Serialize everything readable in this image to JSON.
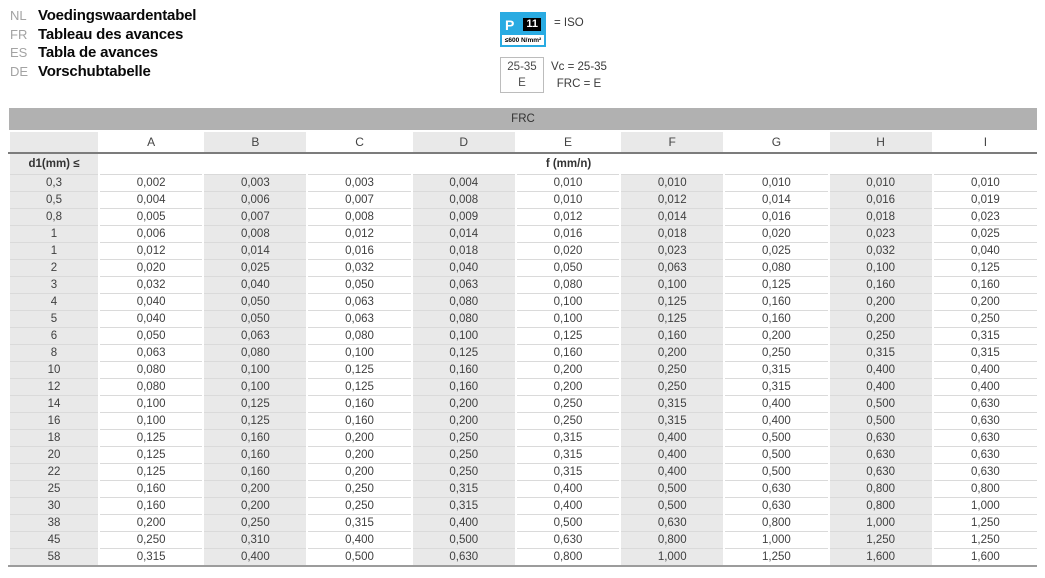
{
  "header": {
    "titles": [
      {
        "lang": "NL",
        "text": "Voedingswaardentabel"
      },
      {
        "lang": "FR",
        "text": "Tableau des avances"
      },
      {
        "lang": "ES",
        "text": "Tabla de avances"
      },
      {
        "lang": "DE",
        "text": "Vorschubtabelle"
      }
    ],
    "iso_badge": {
      "letter": "P",
      "number": "11",
      "subtext": "≤600 N/mm²",
      "equals_label": "= ISO",
      "accent_color": "#29abe2"
    },
    "vc_box": {
      "line1": "25-35",
      "line2": "E",
      "right_line1": "Vc = 25-35",
      "right_line2": "FRC = E"
    }
  },
  "table": {
    "group_header": "FRC",
    "columns": [
      "A",
      "B",
      "C",
      "D",
      "E",
      "F",
      "G",
      "H",
      "I"
    ],
    "row_label_header": "d1(mm) ≤",
    "value_header": "f (mm/n)",
    "rows": [
      {
        "d1": "0,3",
        "values": [
          "0,002",
          "0,003",
          "0,003",
          "0,004",
          "0,010",
          "0,010",
          "0,010",
          "0,010",
          "0,010"
        ]
      },
      {
        "d1": "0,5",
        "values": [
          "0,004",
          "0,006",
          "0,007",
          "0,008",
          "0,010",
          "0,012",
          "0,014",
          "0,016",
          "0,019"
        ]
      },
      {
        "d1": "0,8",
        "values": [
          "0,005",
          "0,007",
          "0,008",
          "0,009",
          "0,012",
          "0,014",
          "0,016",
          "0,018",
          "0,023"
        ]
      },
      {
        "d1": "1",
        "values": [
          "0,006",
          "0,008",
          "0,012",
          "0,014",
          "0,016",
          "0,018",
          "0,020",
          "0,023",
          "0,025"
        ]
      },
      {
        "d1": "1",
        "values": [
          "0,012",
          "0,014",
          "0,016",
          "0,018",
          "0,020",
          "0,023",
          "0,025",
          "0,032",
          "0,040"
        ]
      },
      {
        "d1": "2",
        "values": [
          "0,020",
          "0,025",
          "0,032",
          "0,040",
          "0,050",
          "0,063",
          "0,080",
          "0,100",
          "0,125"
        ]
      },
      {
        "d1": "3",
        "values": [
          "0,032",
          "0,040",
          "0,050",
          "0,063",
          "0,080",
          "0,100",
          "0,125",
          "0,160",
          "0,160"
        ]
      },
      {
        "d1": "4",
        "values": [
          "0,040",
          "0,050",
          "0,063",
          "0,080",
          "0,100",
          "0,125",
          "0,160",
          "0,200",
          "0,200"
        ]
      },
      {
        "d1": "5",
        "values": [
          "0,040",
          "0,050",
          "0,063",
          "0,080",
          "0,100",
          "0,125",
          "0,160",
          "0,200",
          "0,250"
        ]
      },
      {
        "d1": "6",
        "values": [
          "0,050",
          "0,063",
          "0,080",
          "0,100",
          "0,125",
          "0,160",
          "0,200",
          "0,250",
          "0,315"
        ]
      },
      {
        "d1": "8",
        "values": [
          "0,063",
          "0,080",
          "0,100",
          "0,125",
          "0,160",
          "0,200",
          "0,250",
          "0,315",
          "0,315"
        ]
      },
      {
        "d1": "10",
        "values": [
          "0,080",
          "0,100",
          "0,125",
          "0,160",
          "0,200",
          "0,250",
          "0,315",
          "0,400",
          "0,400"
        ]
      },
      {
        "d1": "12",
        "values": [
          "0,080",
          "0,100",
          "0,125",
          "0,160",
          "0,200",
          "0,250",
          "0,315",
          "0,400",
          "0,400"
        ]
      },
      {
        "d1": "14",
        "values": [
          "0,100",
          "0,125",
          "0,160",
          "0,200",
          "0,250",
          "0,315",
          "0,400",
          "0,500",
          "0,630"
        ]
      },
      {
        "d1": "16",
        "values": [
          "0,100",
          "0,125",
          "0,160",
          "0,200",
          "0,250",
          "0,315",
          "0,400",
          "0,500",
          "0,630"
        ]
      },
      {
        "d1": "18",
        "values": [
          "0,125",
          "0,160",
          "0,200",
          "0,250",
          "0,315",
          "0,400",
          "0,500",
          "0,630",
          "0,630"
        ]
      },
      {
        "d1": "20",
        "values": [
          "0,125",
          "0,160",
          "0,200",
          "0,250",
          "0,315",
          "0,400",
          "0,500",
          "0,630",
          "0,630"
        ]
      },
      {
        "d1": "22",
        "values": [
          "0,125",
          "0,160",
          "0,200",
          "0,250",
          "0,315",
          "0,400",
          "0,500",
          "0,630",
          "0,630"
        ]
      },
      {
        "d1": "25",
        "values": [
          "0,160",
          "0,200",
          "0,250",
          "0,315",
          "0,400",
          "0,500",
          "0,630",
          "0,800",
          "0,800"
        ]
      },
      {
        "d1": "30",
        "values": [
          "0,160",
          "0,200",
          "0,250",
          "0,315",
          "0,400",
          "0,500",
          "0,630",
          "0,800",
          "1,000"
        ]
      },
      {
        "d1": "38",
        "values": [
          "0,200",
          "0,250",
          "0,315",
          "0,400",
          "0,500",
          "0,630",
          "0,800",
          "1,000",
          "1,250"
        ]
      },
      {
        "d1": "45",
        "values": [
          "0,250",
          "0,310",
          "0,400",
          "0,500",
          "0,630",
          "0,800",
          "1,000",
          "1,250",
          "1,250"
        ]
      },
      {
        "d1": "58",
        "values": [
          "0,315",
          "0,400",
          "0,500",
          "0,630",
          "0,800",
          "1,000",
          "1,250",
          "1,600",
          "1,600"
        ]
      }
    ]
  },
  "colors": {
    "accent_cyan": "#29abe2",
    "group_bar_gray": "#b1b1b1",
    "column_stripe_gray": "#e9e9e9",
    "header_rule_gray": "#7c7c7c",
    "bottom_rule_gray": "#9c9c9c"
  }
}
